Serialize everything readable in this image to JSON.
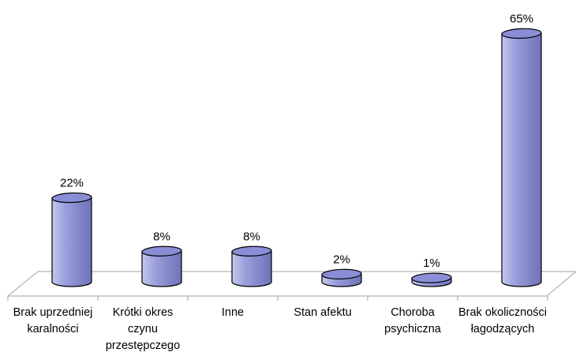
{
  "chart_data": {
    "type": "bar",
    "style": "3d-cylinder",
    "categories": [
      "Brak uprzedniej karalności",
      "Krótki okres czynu przestępczego",
      "Inne",
      "Stan afektu",
      "Choroba psychiczna",
      "Brak okoliczności łagodzących"
    ],
    "values": [
      22,
      8,
      8,
      2,
      1,
      65
    ],
    "value_labels": [
      "22%",
      "8%",
      "8%",
      "2%",
      "1%",
      "65%"
    ],
    "unit": "%",
    "ylim": [
      0,
      65
    ],
    "grid": false,
    "legend": "none",
    "title": "",
    "xlabel": "",
    "ylabel": "",
    "colors": {
      "bar_light": "#c4c7ef",
      "bar_mid": "#9a9edb",
      "bar_dark": "#6e72b8",
      "bar_top": "#8a8ed6",
      "outline": "#000000",
      "floor": "#a0a0a0"
    }
  }
}
